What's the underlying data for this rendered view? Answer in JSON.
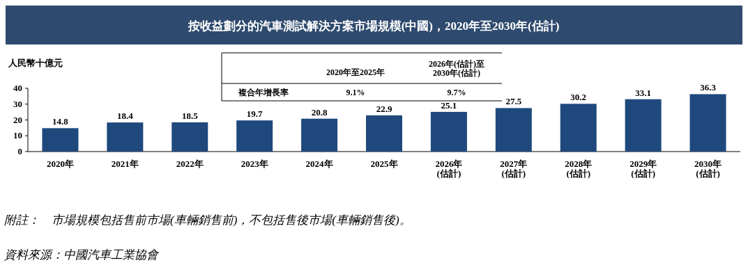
{
  "chart_data": {
    "type": "bar",
    "title": "按收益劃分的汽車測試解決方案市場規模(中國)，2020年至2030年(估計)",
    "ylabel": "人民幣十億元",
    "categories": [
      "2020年",
      "2021年",
      "2022年",
      "2023年",
      "2024年",
      "2025年",
      "2026年\n(估計)",
      "2027年\n(估計)",
      "2028年\n(估計)",
      "2029年\n(估計)",
      "2030年\n(估計)"
    ],
    "values": [
      14.8,
      18.4,
      18.5,
      19.7,
      20.8,
      22.9,
      25.1,
      27.5,
      30.2,
      33.1,
      36.3
    ],
    "color": "#1f497d",
    "ylim": [
      0,
      40
    ],
    "yticks": [
      0,
      10,
      20,
      30,
      40
    ],
    "data_labels": true,
    "annotations": [
      "2020年至2025年",
      "2026年(估計)至\n2030年(估計)",
      "複合年增長率",
      "9.1%",
      "9.7%",
      "附註：　市場規模包括售前市場(車輛銷售前)，不包括售後市場(車輛銷售後)。",
      "資料來源：中國汽車工業協會"
    ]
  }
}
